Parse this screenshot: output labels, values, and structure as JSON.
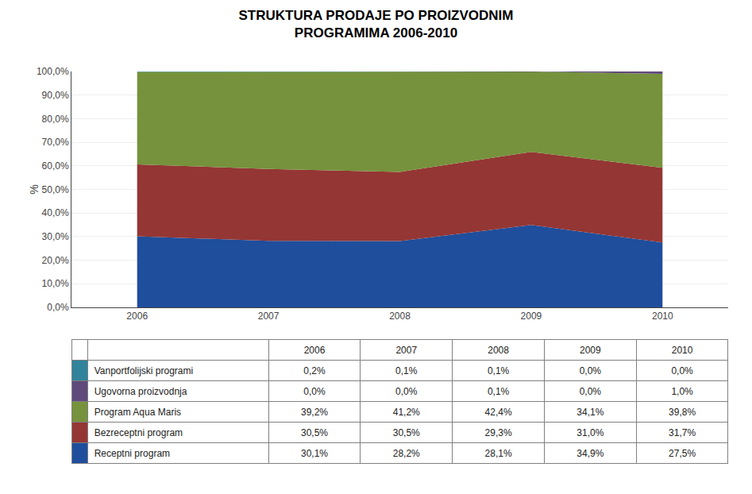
{
  "chart_data": {
    "type": "area",
    "title": "STRUKTURA PRODAJE PO PROIZVODNIM\nPROGRAMIMA 2006-2010",
    "categories": [
      "2006",
      "2007",
      "2008",
      "2009",
      "2010"
    ],
    "series": [
      {
        "name": "Receptni program",
        "color": "#1F4E9C",
        "values": [
          30.1,
          28.2,
          28.1,
          34.9,
          27.5
        ],
        "value_labels": [
          "30,1%",
          "28,2%",
          "28,1%",
          "34,9%",
          "27,5%"
        ]
      },
      {
        "name": "Bezreceptni program",
        "color": "#943634",
        "values": [
          30.5,
          30.5,
          29.3,
          31.0,
          31.7
        ],
        "value_labels": [
          "30,5%",
          "30,5%",
          "29,3%",
          "31,0%",
          "31,7%"
        ]
      },
      {
        "name": "Program Aqua Maris",
        "color": "#76923C",
        "values": [
          39.2,
          41.2,
          42.4,
          34.1,
          39.8
        ],
        "value_labels": [
          "39,2%",
          "41,2%",
          "42,4%",
          "34,1%",
          "39,8%"
        ]
      },
      {
        "name": "Ugovorna proizvodnja",
        "color": "#604A7B",
        "values": [
          0.0,
          0.0,
          0.1,
          0.0,
          1.0
        ],
        "value_labels": [
          "0,0%",
          "0,0%",
          "0,1%",
          "0,0%",
          "1,0%"
        ]
      },
      {
        "name": "Vanportfolijski programi",
        "color": "#31849B",
        "values": [
          0.2,
          0.1,
          0.1,
          0.0,
          0.0
        ],
        "value_labels": [
          "0,2%",
          "0,1%",
          "0,1%",
          "0,0%",
          "0,0%"
        ]
      }
    ],
    "stacked": true,
    "data_labels": true,
    "ylabel": "%",
    "ylim": [
      0,
      100
    ],
    "yticks": [
      {
        "value": 0,
        "label": "0,0%"
      },
      {
        "value": 10,
        "label": "10,0%"
      },
      {
        "value": 20,
        "label": "20,0%"
      },
      {
        "value": 30,
        "label": "30,0%"
      },
      {
        "value": 40,
        "label": "40,0%"
      },
      {
        "value": 50,
        "label": "50,0%"
      },
      {
        "value": 60,
        "label": "60,0%"
      },
      {
        "value": 70,
        "label": "70,0%"
      },
      {
        "value": 80,
        "label": "80,0%"
      },
      {
        "value": 90,
        "label": "90,0%"
      },
      {
        "value": 100,
        "label": "100,0%"
      }
    ],
    "grid": true
  }
}
